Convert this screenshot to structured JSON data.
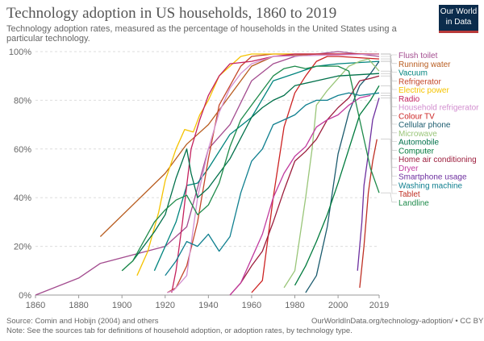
{
  "header": {
    "title": "Technology adoption in US households, 1860 to 2019",
    "subtitle": "Technology adoption rates, measured as the percentage of households in the United States using a particular technology."
  },
  "logo": {
    "line1": "Our World",
    "line2": "in Data",
    "bg": "#0b2c4c",
    "accent": "#b83a3a"
  },
  "footer": {
    "source": "Source: Comin and Hobijn (2004) and others",
    "url": "OurWorldInData.org/technology-adoption/ • CC BY",
    "note": "Note: See the sources tab for definitions of household adoption, or adoption rates, by technology type."
  },
  "chart_data": {
    "type": "line",
    "title": "Technology adoption in US households, 1860 to 2019",
    "xlim": [
      1860,
      2019
    ],
    "ylim": [
      0,
      100
    ],
    "x_ticks": [
      "1860",
      "1880",
      "1900",
      "1920",
      "1940",
      "1960",
      "1980",
      "2000",
      "2019"
    ],
    "y_ticks": [
      "0%",
      "20%",
      "40%",
      "60%",
      "80%",
      "100%"
    ],
    "grid": "horizontal dashed",
    "legend_position": "right",
    "series": [
      {
        "name": "Flush toilet",
        "color": "#a34c8f",
        "points": [
          [
            1860,
            0
          ],
          [
            1880,
            7
          ],
          [
            1890,
            13
          ],
          [
            1920,
            20
          ],
          [
            1930,
            28
          ],
          [
            1940,
            60
          ],
          [
            1950,
            70
          ],
          [
            1960,
            88
          ],
          [
            1970,
            95
          ],
          [
            1980,
            98
          ],
          [
            1990,
            99
          ],
          [
            2000,
            100
          ],
          [
            2010,
            99
          ],
          [
            2019,
            98
          ]
        ]
      },
      {
        "name": "Running water",
        "color": "#b85c1f",
        "points": [
          [
            1890,
            24
          ],
          [
            1920,
            50
          ],
          [
            1930,
            62
          ],
          [
            1940,
            70
          ],
          [
            1950,
            82
          ],
          [
            1960,
            94
          ],
          [
            1970,
            98
          ],
          [
            1990,
            99
          ],
          [
            2019,
            99
          ]
        ]
      },
      {
        "name": "Vacuum",
        "color": "#00847e",
        "points": [
          [
            1915,
            10
          ],
          [
            1920,
            20
          ],
          [
            1925,
            30
          ],
          [
            1930,
            45
          ],
          [
            1935,
            46
          ],
          [
            1940,
            52
          ],
          [
            1950,
            66
          ],
          [
            1960,
            73
          ],
          [
            1970,
            88
          ],
          [
            1980,
            91
          ],
          [
            1990,
            94
          ],
          [
            2000,
            95
          ],
          [
            2019,
            96
          ]
        ]
      },
      {
        "name": "Refrigerator",
        "color": "#c4472a",
        "points": [
          [
            1921,
            1
          ],
          [
            1925,
            3
          ],
          [
            1930,
            12
          ],
          [
            1935,
            30
          ],
          [
            1940,
            56
          ],
          [
            1945,
            78
          ],
          [
            1950,
            86
          ],
          [
            1955,
            94
          ],
          [
            1960,
            98
          ],
          [
            1970,
            99
          ],
          [
            1990,
            99
          ],
          [
            2019,
            99
          ]
        ]
      },
      {
        "name": "Electric power",
        "color": "#f5c300",
        "points": [
          [
            1907,
            8
          ],
          [
            1912,
            18
          ],
          [
            1917,
            34
          ],
          [
            1920,
            47
          ],
          [
            1925,
            60
          ],
          [
            1929,
            68
          ],
          [
            1933,
            67
          ],
          [
            1936,
            74
          ],
          [
            1940,
            80
          ],
          [
            1945,
            90
          ],
          [
            1950,
            94
          ],
          [
            1955,
            98
          ],
          [
            1960,
            99
          ],
          [
            2019,
            99
          ]
        ]
      },
      {
        "name": "Radio",
        "color": "#c4205d",
        "points": [
          [
            1923,
            1
          ],
          [
            1925,
            10
          ],
          [
            1928,
            30
          ],
          [
            1930,
            45
          ],
          [
            1932,
            60
          ],
          [
            1936,
            72
          ],
          [
            1940,
            82
          ],
          [
            1945,
            90
          ],
          [
            1950,
            95
          ],
          [
            1960,
            96
          ],
          [
            1970,
            98
          ],
          [
            1980,
            99
          ],
          [
            2019,
            99
          ]
        ]
      },
      {
        "name": "Household refrigerator",
        "color": "#d28ecf",
        "points": [
          [
            1921,
            1
          ],
          [
            1924,
            2
          ],
          [
            1930,
            8
          ],
          [
            1935,
            40
          ],
          [
            1940,
            60
          ],
          [
            1945,
            75
          ],
          [
            1950,
            85
          ],
          [
            1955,
            91
          ],
          [
            1960,
            95
          ],
          [
            1970,
            98
          ],
          [
            2019,
            99
          ]
        ]
      },
      {
        "name": "Colour TV",
        "color": "#cc2222",
        "points": [
          [
            1960,
            1
          ],
          [
            1965,
            6
          ],
          [
            1970,
            40
          ],
          [
            1975,
            69
          ],
          [
            1980,
            83
          ],
          [
            1985,
            90
          ],
          [
            1990,
            96
          ],
          [
            1995,
            98
          ],
          [
            2000,
            98
          ],
          [
            2019,
            97
          ]
        ]
      },
      {
        "name": "Cellular phone",
        "color": "#1b5b6e",
        "points": [
          [
            1985,
            1
          ],
          [
            1990,
            8
          ],
          [
            1995,
            28
          ],
          [
            2000,
            58
          ],
          [
            2003,
            68
          ],
          [
            2005,
            75
          ],
          [
            2010,
            86
          ],
          [
            2015,
            91
          ],
          [
            2019,
            96
          ]
        ]
      },
      {
        "name": "Microwave",
        "color": "#99c578",
        "points": [
          [
            1975,
            3
          ],
          [
            1980,
            10
          ],
          [
            1985,
            40
          ],
          [
            1988,
            60
          ],
          [
            1990,
            78
          ],
          [
            1995,
            84
          ],
          [
            2000,
            89
          ],
          [
            2005,
            94
          ],
          [
            2010,
            96
          ],
          [
            2014,
            97
          ],
          [
            2019,
            92
          ]
        ]
      },
      {
        "name": "Automobile",
        "color": "#00704a",
        "points": [
          [
            1900,
            10
          ],
          [
            1905,
            14
          ],
          [
            1910,
            20
          ],
          [
            1915,
            26
          ],
          [
            1920,
            33
          ],
          [
            1925,
            48
          ],
          [
            1930,
            60
          ],
          [
            1932,
            50
          ],
          [
            1935,
            40
          ],
          [
            1940,
            44
          ],
          [
            1945,
            50
          ],
          [
            1950,
            56
          ],
          [
            1960,
            73
          ],
          [
            1965,
            77
          ],
          [
            1970,
            80
          ],
          [
            1975,
            82
          ],
          [
            1980,
            86
          ],
          [
            1990,
            88
          ],
          [
            2000,
            90
          ],
          [
            2019,
            91
          ]
        ]
      },
      {
        "name": "Computer",
        "color": "#007a3d",
        "points": [
          [
            1980,
            4
          ],
          [
            1985,
            12
          ],
          [
            1990,
            22
          ],
          [
            1995,
            33
          ],
          [
            2000,
            46
          ],
          [
            2005,
            60
          ],
          [
            2010,
            74
          ],
          [
            2015,
            80
          ],
          [
            2019,
            86
          ]
        ]
      },
      {
        "name": "Home air conditioning",
        "color": "#9c1d3c",
        "points": [
          [
            1950,
            0
          ],
          [
            1955,
            5
          ],
          [
            1960,
            12
          ],
          [
            1965,
            18
          ],
          [
            1970,
            30
          ],
          [
            1975,
            43
          ],
          [
            1980,
            55
          ],
          [
            1985,
            59
          ],
          [
            1990,
            64
          ],
          [
            1995,
            72
          ],
          [
            2000,
            77
          ],
          [
            2005,
            81
          ],
          [
            2010,
            88
          ],
          [
            2015,
            89
          ],
          [
            2019,
            90
          ]
        ]
      },
      {
        "name": "Dryer",
        "color": "#c13b9f",
        "points": [
          [
            1950,
            0
          ],
          [
            1955,
            5
          ],
          [
            1960,
            15
          ],
          [
            1965,
            25
          ],
          [
            1970,
            40
          ],
          [
            1975,
            50
          ],
          [
            1980,
            57
          ],
          [
            1985,
            61
          ],
          [
            1990,
            69
          ],
          [
            1995,
            72
          ],
          [
            2000,
            74
          ],
          [
            2005,
            78
          ],
          [
            2010,
            81
          ],
          [
            2015,
            82
          ]
        ]
      },
      {
        "name": "Smartphone usage",
        "color": "#6d2f9f",
        "points": [
          [
            2009,
            10
          ],
          [
            2011,
            30
          ],
          [
            2012,
            45
          ],
          [
            2014,
            58
          ],
          [
            2016,
            72
          ],
          [
            2019,
            81
          ]
        ]
      },
      {
        "name": "Washing machine",
        "color": "#0f7f8f",
        "points": [
          [
            1920,
            8
          ],
          [
            1925,
            14
          ],
          [
            1930,
            22
          ],
          [
            1935,
            20
          ],
          [
            1940,
            25
          ],
          [
            1945,
            18
          ],
          [
            1950,
            24
          ],
          [
            1955,
            42
          ],
          [
            1960,
            55
          ],
          [
            1965,
            60
          ],
          [
            1970,
            70
          ],
          [
            1975,
            72
          ],
          [
            1980,
            74
          ],
          [
            1985,
            78
          ],
          [
            1990,
            80
          ],
          [
            1995,
            80
          ],
          [
            2000,
            82
          ],
          [
            2005,
            83
          ],
          [
            2010,
            82
          ],
          [
            2019,
            83
          ]
        ]
      },
      {
        "name": "Tablet",
        "color": "#bf3024",
        "points": [
          [
            2010,
            3
          ],
          [
            2012,
            20
          ],
          [
            2014,
            42
          ],
          [
            2016,
            55
          ],
          [
            2018,
            64
          ]
        ]
      },
      {
        "name": "Landline",
        "color": "#1d8a4a",
        "points": [
          [
            1900,
            10
          ],
          [
            1905,
            14
          ],
          [
            1910,
            22
          ],
          [
            1915,
            30
          ],
          [
            1920,
            35
          ],
          [
            1925,
            39
          ],
          [
            1930,
            41
          ],
          [
            1935,
            33
          ],
          [
            1940,
            37
          ],
          [
            1945,
            46
          ],
          [
            1950,
            61
          ],
          [
            1955,
            72
          ],
          [
            1960,
            78
          ],
          [
            1965,
            84
          ],
          [
            1970,
            90
          ],
          [
            1975,
            93
          ],
          [
            1980,
            94
          ],
          [
            1985,
            93
          ],
          [
            1990,
            94
          ],
          [
            1995,
            94
          ],
          [
            2000,
            94
          ],
          [
            2005,
            92
          ],
          [
            2010,
            72
          ],
          [
            2015,
            52
          ],
          [
            2019,
            42
          ]
        ]
      }
    ]
  }
}
